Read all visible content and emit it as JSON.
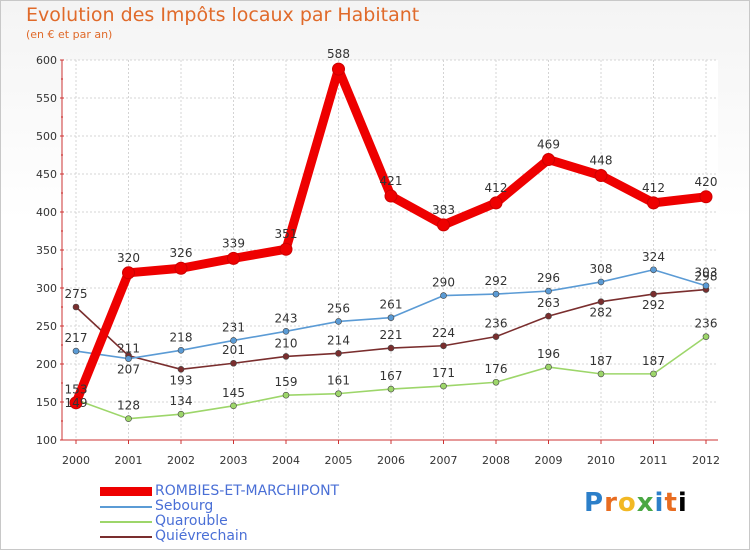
{
  "header": {
    "title": "Evolution des Impôts locaux par Habitant",
    "subtitle": "(en € et par an)"
  },
  "logo": {
    "letters": [
      "P",
      "r",
      "o",
      "x",
      "i",
      "t",
      "i"
    ]
  },
  "chart_data": {
    "type": "line",
    "x": [
      "2000",
      "2001",
      "2002",
      "2003",
      "2004",
      "2005",
      "2006",
      "2007",
      "2008",
      "2009",
      "2010",
      "2011",
      "2012"
    ],
    "ylim": [
      100,
      600
    ],
    "yticks": [
      "100",
      "150",
      "200",
      "250",
      "300",
      "350",
      "400",
      "450",
      "500",
      "550",
      "600"
    ],
    "grid": true,
    "legend_position": "bottom-left",
    "series": [
      {
        "name": "ROMBIES-ET-MARCHIPONT",
        "color": "#ee0000",
        "values": [
          149,
          320,
          326,
          339,
          351,
          588,
          421,
          383,
          412,
          469,
          448,
          412,
          420
        ],
        "labels": [
          "149",
          "320",
          "326",
          "339",
          "351",
          "588",
          "421",
          "383",
          "412",
          "469",
          "448",
          "412",
          "420"
        ]
      },
      {
        "name": "Sebourg",
        "color": "#5b9bd5",
        "values": [
          217,
          207,
          218,
          231,
          243,
          256,
          261,
          290,
          292,
          296,
          308,
          324,
          303
        ],
        "labels": [
          "217",
          "207",
          "218",
          "231",
          "243",
          "256",
          "261",
          "290",
          "292",
          "296",
          "308",
          "324",
          "303"
        ]
      },
      {
        "name": "Quarouble",
        "color": "#9dd66a",
        "values": [
          153,
          128,
          134,
          145,
          159,
          161,
          167,
          171,
          176,
          196,
          187,
          187,
          236
        ],
        "labels": [
          "153",
          "128",
          "134",
          "145",
          "159",
          "161",
          "167",
          "171",
          "176",
          "196",
          "187",
          "187",
          "236"
        ]
      },
      {
        "name": "Quiévrechain",
        "color": "#7a2e2e",
        "values": [
          275,
          211,
          193,
          201,
          210,
          214,
          221,
          224,
          236,
          263,
          282,
          292,
          298
        ],
        "labels": [
          "275",
          "211",
          "193",
          "201",
          "210",
          "214",
          "221",
          "224",
          "236",
          "263",
          "282",
          "292",
          "298"
        ]
      }
    ]
  }
}
